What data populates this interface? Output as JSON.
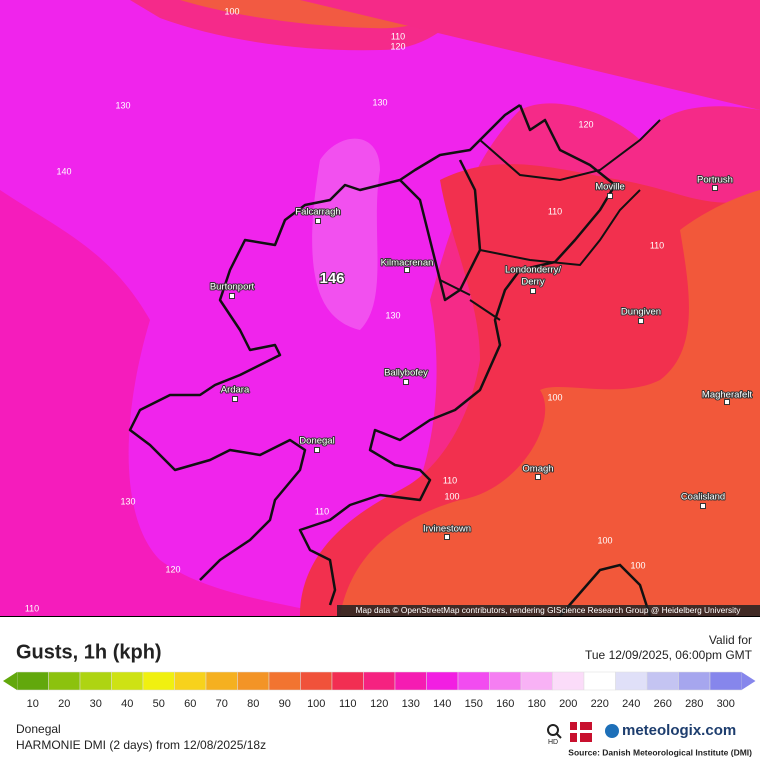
{
  "map": {
    "peak": "146",
    "contour_labels": [
      "100",
      "110",
      "120",
      "130",
      "130",
      "120",
      "140",
      "110",
      "110",
      "130",
      "100",
      "110",
      "100",
      "130",
      "110",
      "100",
      "120",
      "100",
      "110"
    ],
    "places": [
      {
        "lines": [
          "Falcarragh"
        ]
      },
      {
        "lines": [
          "Burtonport"
        ]
      },
      {
        "lines": [
          "Kilmacrenan"
        ]
      },
      {
        "lines": [
          "Londonderry/",
          "Derry"
        ]
      },
      {
        "lines": [
          "Moville"
        ]
      },
      {
        "lines": [
          "Portrush"
        ]
      },
      {
        "lines": [
          "Dungiven"
        ]
      },
      {
        "lines": [
          "Ardara"
        ]
      },
      {
        "lines": [
          "Ballybofey"
        ]
      },
      {
        "lines": [
          "Magherafelt"
        ]
      },
      {
        "lines": [
          "Donegal"
        ]
      },
      {
        "lines": [
          "Omagh"
        ]
      },
      {
        "lines": [
          "Coalisland"
        ]
      },
      {
        "lines": [
          "Irvinestown"
        ]
      }
    ],
    "attribution": "Map data © OpenStreetMap contributors, rendering GIScience Research Group @ Heidelberg University"
  },
  "legend": {
    "title": "Gusts, 1h (kph)",
    "items": [
      {
        "value": 10,
        "color": "#62a80c"
      },
      {
        "value": 20,
        "color": "#8cc20e"
      },
      {
        "value": 30,
        "color": "#aed412"
      },
      {
        "value": 40,
        "color": "#cee214"
      },
      {
        "value": 50,
        "color": "#f0f010"
      },
      {
        "value": 60,
        "color": "#f7d21c"
      },
      {
        "value": 70,
        "color": "#f5b020"
      },
      {
        "value": 80,
        "color": "#f39426"
      },
      {
        "value": 90,
        "color": "#f27430"
      },
      {
        "value": 100,
        "color": "#f0523a"
      },
      {
        "value": 110,
        "color": "#f22e52"
      },
      {
        "value": 120,
        "color": "#f52280"
      },
      {
        "value": 130,
        "color": "#f51cb2"
      },
      {
        "value": 140,
        "color": "#f21ee2"
      },
      {
        "value": 150,
        "color": "#f24cf0"
      },
      {
        "value": 160,
        "color": "#f57ef2"
      },
      {
        "value": 180,
        "color": "#f8b2f5"
      },
      {
        "value": 200,
        "color": "#fbdcf9"
      },
      {
        "value": 220,
        "color": "#ffffff"
      },
      {
        "value": 240,
        "color": "#e0e0f8"
      },
      {
        "value": 260,
        "color": "#c4c4f2"
      },
      {
        "value": 280,
        "color": "#a6a6ee"
      },
      {
        "value": 300,
        "color": "#8686ec"
      }
    ]
  },
  "valid": {
    "label": "Valid for",
    "time": "Tue 12/09/2025, 06:00pm GMT"
  },
  "footer": {
    "location": "Donegal",
    "model": "HARMONIE DMI (2 days) from 12/08/2025/18z",
    "hd": "HD",
    "brand": "meteologix.com",
    "source": "Source: Danish Meteorological Institute (DMI)"
  }
}
